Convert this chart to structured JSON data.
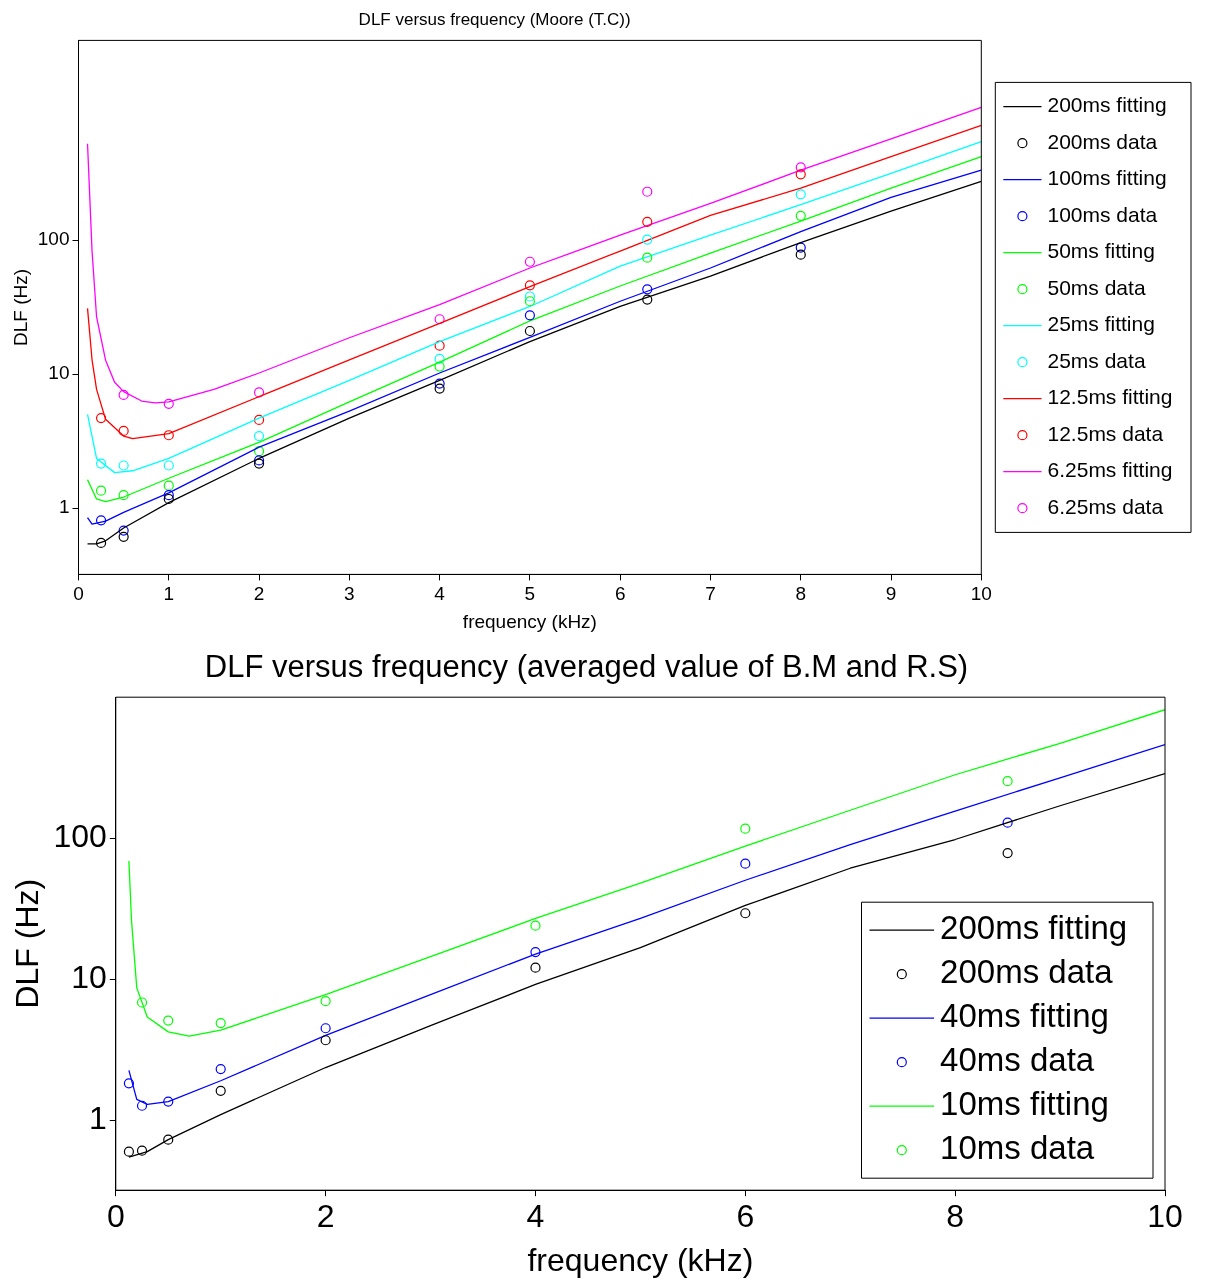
{
  "chart_data": [
    {
      "type": "line",
      "title": "DLF versus frequency (Moore (T.C))",
      "xlabel": "frequency (kHz)",
      "ylabel": "DLF (Hz)",
      "xlim": [
        0,
        10
      ],
      "xticks": [
        0,
        1,
        2,
        3,
        4,
        5,
        6,
        7,
        8,
        9,
        10
      ],
      "ylim": [
        0.32,
        3100
      ],
      "yticks": [
        1,
        10,
        100
      ],
      "log": "y",
      "legend": "right",
      "series": [
        {
          "name": "200ms fitting",
          "type": "line",
          "marker": "none",
          "color": "#000000",
          "x": [
            0.1,
            0.2,
            0.3,
            0.5,
            1,
            2,
            3,
            4,
            5,
            6,
            7,
            8,
            9,
            10
          ],
          "values": [
            0.54,
            0.54,
            0.57,
            0.71,
            1.1,
            2.35,
            4.7,
            9.0,
            17.5,
            32,
            54,
            96,
            165,
            275
          ]
        },
        {
          "name": "200ms data",
          "type": "scatter",
          "marker": "circle",
          "color": "#000000",
          "x": [
            0.25,
            0.5,
            1,
            2,
            4,
            5,
            6.3,
            8
          ],
          "values": [
            0.55,
            0.61,
            1.17,
            2.15,
            7.8,
            21,
            36,
            78
          ]
        },
        {
          "name": "100ms fitting",
          "type": "line",
          "marker": "none",
          "color": "#0000ff",
          "x": [
            0.1,
            0.15,
            0.3,
            0.5,
            1,
            2,
            3,
            4,
            5,
            6,
            7,
            8,
            9,
            10
          ],
          "values": [
            0.85,
            0.76,
            0.8,
            0.93,
            1.3,
            2.85,
            5.3,
            10.2,
            18.8,
            35,
            62,
            116,
            209,
            333
          ]
        },
        {
          "name": "100ms data",
          "type": "scatter",
          "marker": "circle",
          "color": "#0000ff",
          "x": [
            0.25,
            0.5,
            1,
            2,
            4,
            5,
            6.3,
            8
          ],
          "values": [
            0.81,
            0.68,
            1.25,
            2.27,
            8.5,
            27.5,
            43,
            88
          ]
        },
        {
          "name": "50ms fitting",
          "type": "line",
          "marker": "none",
          "color": "#00ff00",
          "x": [
            0.1,
            0.2,
            0.3,
            0.5,
            1,
            2,
            3,
            4,
            5,
            6,
            7,
            8,
            9,
            10
          ],
          "values": [
            1.63,
            1.17,
            1.12,
            1.21,
            1.67,
            3.1,
            6.2,
            12.3,
            25,
            45.5,
            80,
            139,
            245,
            420
          ]
        },
        {
          "name": "50ms data",
          "type": "scatter",
          "marker": "circle",
          "color": "#00ff00",
          "x": [
            0.25,
            0.5,
            1,
            2,
            4,
            5,
            6.3,
            8
          ],
          "values": [
            1.35,
            1.25,
            1.47,
            2.66,
            11.4,
            35,
            74,
            152
          ]
        },
        {
          "name": "25ms fitting",
          "type": "line",
          "marker": "none",
          "color": "#00ffff",
          "x": [
            0.1,
            0.2,
            0.4,
            0.6,
            1,
            2,
            3,
            4,
            5,
            6,
            7,
            8,
            9,
            10
          ],
          "values": [
            5.0,
            2.35,
            1.84,
            1.9,
            2.35,
            4.7,
            9.0,
            17.5,
            32,
            64,
            109,
            184,
            315,
            545
          ]
        },
        {
          "name": "25ms data",
          "type": "scatter",
          "marker": "circle",
          "color": "#00ffff",
          "x": [
            0.25,
            0.5,
            1,
            2,
            4,
            5,
            6.3,
            8
          ],
          "values": [
            2.15,
            2.08,
            2.08,
            3.45,
            13,
            38,
            101,
            220
          ]
        },
        {
          "name": "12.5ms fitting",
          "type": "line",
          "marker": "none",
          "color": "#ff0000",
          "x": [
            0.1,
            0.15,
            0.2,
            0.3,
            0.5,
            0.6,
            1,
            2,
            3,
            4,
            5,
            6,
            7,
            8,
            9,
            10
          ],
          "values": [
            31,
            12.8,
            7.7,
            4.6,
            3.45,
            3.3,
            3.6,
            6.8,
            12.8,
            23.9,
            45,
            83,
            153,
            245,
            420,
            720
          ]
        },
        {
          "name": "12.5ms data",
          "type": "scatter",
          "marker": "circle",
          "color": "#ff0000",
          "x": [
            0.25,
            0.5,
            1,
            2,
            4,
            5,
            6.3,
            8
          ],
          "values": [
            4.7,
            3.77,
            3.5,
            4.55,
            16.3,
            46,
            137,
            310
          ]
        },
        {
          "name": "6.25ms fitting",
          "type": "line",
          "marker": "none",
          "color": "#ff00ff",
          "x": [
            0.1,
            0.15,
            0.2,
            0.3,
            0.4,
            0.5,
            0.7,
            0.85,
            1,
            1.5,
            2,
            3,
            4,
            5,
            6,
            7,
            8,
            9,
            10
          ],
          "values": [
            525,
            83,
            26.8,
            12.7,
            8.7,
            7.4,
            6.3,
            6.1,
            6.2,
            7.7,
            10.2,
            18.7,
            33,
            62,
            109,
            188,
            333,
            570,
            980
          ]
        },
        {
          "name": "6.25ms data",
          "type": "scatter",
          "marker": "circle",
          "color": "#ff00ff",
          "x": [
            0.5,
            1,
            2,
            4,
            5,
            6.3,
            8
          ],
          "values": [
            7.0,
            6.0,
            7.3,
            25.7,
            69,
            230,
            350
          ]
        }
      ]
    },
    {
      "type": "line",
      "title": "DLF versus frequency (averaged value of B.M and R.S)",
      "xlabel": "frequency (kHz)",
      "ylabel": "DLF (Hz)",
      "xlim": [
        0,
        10
      ],
      "xticks": [
        0,
        2,
        4,
        6,
        8,
        10
      ],
      "ylim": [
        0.32,
        1000
      ],
      "yticks": [
        1,
        10,
        100
      ],
      "log": "y",
      "legend": "bottom right",
      "series": [
        {
          "name": "200ms fitting",
          "type": "line",
          "marker": "none",
          "color": "#000000",
          "x": [
            0.125,
            0.3,
            0.5,
            1,
            2,
            3,
            4,
            5,
            6,
            7,
            8,
            9,
            10
          ],
          "values": [
            0.55,
            0.6,
            0.73,
            1.1,
            2.37,
            4.7,
            9.2,
            16.8,
            33.4,
            61.3,
            98,
            170,
            287
          ]
        },
        {
          "name": "200ms data",
          "type": "scatter",
          "marker": "circle",
          "color": "#000000",
          "x": [
            0.125,
            0.25,
            0.5,
            1,
            2,
            4,
            6,
            8.5
          ],
          "values": [
            0.6,
            0.61,
            0.73,
            1.62,
            3.7,
            12.1,
            29.4,
            78.5
          ]
        },
        {
          "name": "40ms fitting",
          "type": "line",
          "marker": "none",
          "color": "#0000ff",
          "x": [
            0.125,
            0.2,
            0.3,
            0.5,
            1,
            2,
            3,
            4,
            5,
            6,
            7,
            8,
            9,
            10
          ],
          "values": [
            2.26,
            1.41,
            1.3,
            1.36,
            1.91,
            4.0,
            7.8,
            15.1,
            27,
            50.4,
            90,
            156,
            268,
            462
          ]
        },
        {
          "name": "40ms data",
          "type": "scatter",
          "marker": "circle",
          "color": "#0000ff",
          "x": [
            0.125,
            0.25,
            0.5,
            1,
            2,
            4,
            6,
            8.5
          ],
          "values": [
            1.83,
            1.27,
            1.36,
            2.31,
            4.5,
            15.6,
            66,
            129
          ]
        },
        {
          "name": "10ms fitting",
          "type": "line",
          "marker": "none",
          "color": "#00ff00",
          "x": [
            0.125,
            0.15,
            0.2,
            0.3,
            0.5,
            0.7,
            1,
            2,
            3,
            4,
            5,
            6,
            7,
            8,
            9,
            10
          ],
          "values": [
            69,
            26,
            8.7,
            5.4,
            4.24,
            3.95,
            4.36,
            7.8,
            14.5,
            27,
            48,
            88,
            158,
            282,
            471,
            815
          ]
        },
        {
          "name": "10ms data",
          "type": "scatter",
          "marker": "circle",
          "color": "#00ff00",
          "x": [
            0.25,
            0.5,
            1,
            2,
            4,
            6,
            8.5
          ],
          "values": [
            6.85,
            5.1,
            4.9,
            7.0,
            24,
            117,
            254
          ]
        }
      ]
    }
  ]
}
